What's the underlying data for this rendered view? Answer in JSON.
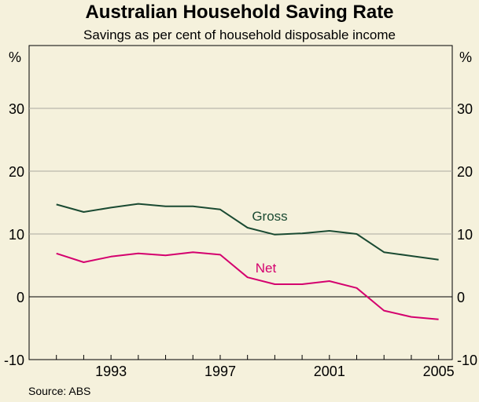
{
  "chart_data": {
    "type": "line",
    "title": "Australian Household Saving Rate",
    "subtitle": "Savings as per cent of household disposable income",
    "unit_label": "%",
    "source": "Source: ABS",
    "xlim": [
      1990,
      2005.5
    ],
    "ylim": [
      -10,
      40
    ],
    "yticks": [
      -10,
      0,
      10,
      20,
      30
    ],
    "xticks": [
      1993,
      1997,
      2001,
      2005
    ],
    "grid": "horizontal",
    "legend": "inline labels",
    "x": [
      1991,
      1992,
      1993,
      1994,
      1995,
      1996,
      1997,
      1998,
      1999,
      2000,
      2001,
      2002,
      2003,
      2004,
      2005
    ],
    "series": [
      {
        "name": "Gross",
        "color": "#1a4a32",
        "values": [
          14.7,
          13.5,
          14.2,
          14.8,
          14.4,
          14.4,
          13.9,
          11.0,
          9.9,
          10.1,
          10.5,
          10.0,
          7.1,
          6.5,
          5.9
        ]
      },
      {
        "name": "Net",
        "color": "#d4006e",
        "values": [
          6.9,
          5.5,
          6.4,
          6.9,
          6.6,
          7.1,
          6.7,
          3.1,
          2.0,
          2.0,
          2.5,
          1.4,
          -2.2,
          -3.2,
          -3.6
        ]
      }
    ]
  }
}
